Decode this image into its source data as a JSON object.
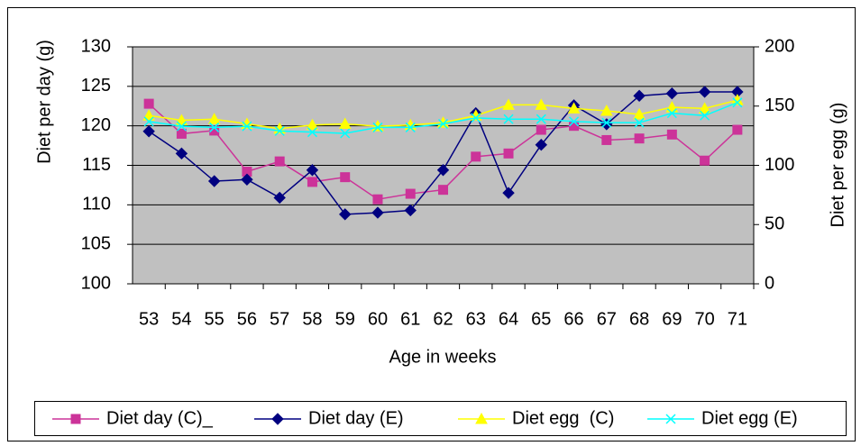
{
  "chart_data": {
    "type": "line",
    "x_label": "Age in weeks",
    "y_label": "Diet per day (g)",
    "y2_label": "Diet per egg (g)",
    "categories": [
      "53",
      "54",
      "55",
      "56",
      "57",
      "58",
      "59",
      "60",
      "61",
      "62",
      "63",
      "64",
      "65",
      "66",
      "67",
      "68",
      "69",
      "70",
      "71"
    ],
    "series": [
      {
        "name": "Diet day (C)_",
        "color": "#cc3399",
        "marker": "square",
        "values": [
          122.8,
          119.0,
          119.4,
          114.2,
          115.5,
          112.9,
          113.5,
          110.7,
          111.4,
          111.9,
          116.1,
          116.5,
          119.5,
          120.0,
          118.2,
          118.4,
          118.9,
          115.6,
          119.5
        ]
      },
      {
        "name": "Diet day (E)",
        "color": "#000080",
        "marker": "diamond",
        "values": [
          119.3,
          116.5,
          113.0,
          113.2,
          110.9,
          114.4,
          108.8,
          109.0,
          109.3,
          114.4,
          121.6,
          111.5,
          117.6,
          122.6,
          120.2,
          123.8,
          124.1,
          124.3,
          124.3
        ]
      },
      {
        "name": "Diet egg  (C)",
        "color": "#ffff00",
        "marker": "triangle",
        "axis": "y2",
        "values": [
          142,
          138,
          139,
          135,
          131,
          134,
          135,
          133,
          134,
          136,
          142,
          151,
          151,
          148,
          146,
          143,
          149,
          148,
          155
        ]
      },
      {
        "name": "Diet egg (E)",
        "color": "#00ffff",
        "marker": "x",
        "axis": "y2",
        "values": [
          137,
          133,
          132,
          133,
          129,
          128,
          127,
          132,
          132,
          135,
          140,
          139,
          139,
          137,
          136,
          136,
          144,
          142,
          153
        ]
      }
    ],
    "ylim": [
      100,
      130
    ],
    "yticks": [
      100,
      105,
      110,
      115,
      120,
      125,
      130
    ],
    "y2lim": [
      0,
      200
    ],
    "y2ticks": [
      0,
      50,
      100,
      150,
      200
    ],
    "grid": true,
    "plot_background": "#c0c0c0",
    "legend": "bottom"
  }
}
